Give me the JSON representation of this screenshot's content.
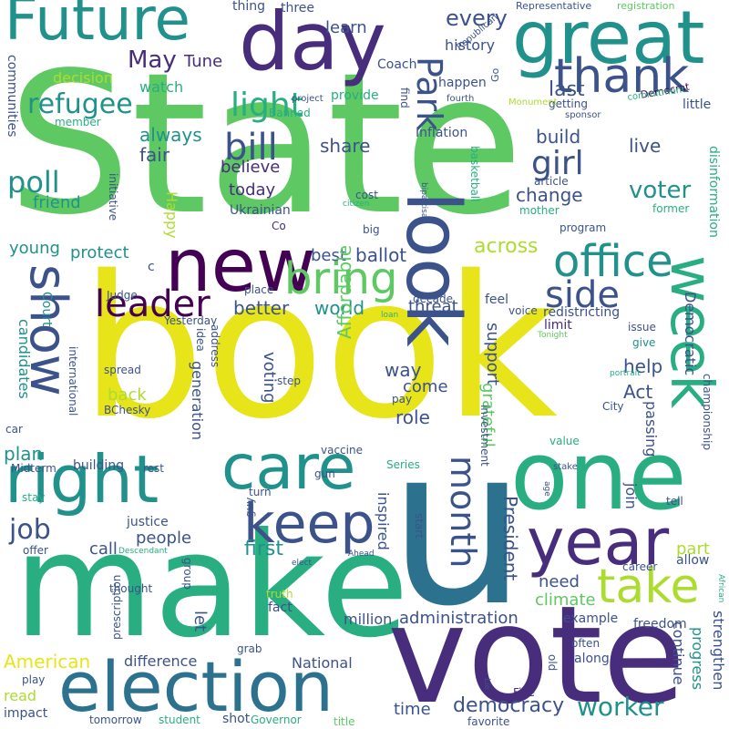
{
  "colors": {
    "background": "#ffffff",
    "dark_purple": "#440154",
    "purple": "#472d7b",
    "indigo": "#3b528b",
    "blue": "#2c728e",
    "teal": "#21918c",
    "turquoise": "#28ae80",
    "green": "#5ec962",
    "lime": "#addc30",
    "yellow": "#e7e419"
  },
  "words": [
    {
      "text": "State",
      "color": "#5ec962"
    },
    {
      "text": "book",
      "color": "#e7e419"
    },
    {
      "text": "u",
      "color": "#2c728e"
    },
    {
      "text": "make",
      "color": "#28ae80"
    },
    {
      "text": "vote",
      "color": "#472d7b"
    },
    {
      "text": "one",
      "color": "#28ae80"
    },
    {
      "text": "day",
      "color": "#472d7b"
    },
    {
      "text": "great",
      "color": "#21918c"
    },
    {
      "text": "Future",
      "color": "#21918c"
    },
    {
      "text": "new",
      "color": "#440154"
    },
    {
      "text": "look",
      "color": "#3b528b"
    },
    {
      "text": "election",
      "color": "#2c728e"
    },
    {
      "text": "year",
      "color": "#472d7b"
    },
    {
      "text": "right",
      "color": "#21918c"
    },
    {
      "text": "care",
      "color": "#21918c"
    },
    {
      "text": "show",
      "color": "#3b528b"
    },
    {
      "text": "week",
      "color": "#28ae80"
    },
    {
      "text": "thank",
      "color": "#3b528b"
    },
    {
      "text": "keep",
      "color": "#3b528b"
    },
    {
      "text": "take",
      "color": "#addc30"
    },
    {
      "text": "office",
      "color": "#21918c"
    },
    {
      "text": "bring",
      "color": "#5ec962"
    },
    {
      "text": "month",
      "color": "#3b528b"
    },
    {
      "text": "Park",
      "color": "#3b528b"
    },
    {
      "text": "leader",
      "color": "#440154"
    },
    {
      "text": "side",
      "color": "#3b528b"
    },
    {
      "text": "bill",
      "color": "#3b528b"
    },
    {
      "text": "light",
      "color": "#28ae80"
    },
    {
      "text": "poll",
      "color": "#21918c"
    },
    {
      "text": "refugee",
      "color": "#21918c"
    },
    {
      "text": "girl",
      "color": "#3b528b"
    },
    {
      "text": "job",
      "color": "#3b528b"
    },
    {
      "text": "worker",
      "color": "#21918c"
    },
    {
      "text": "democracy",
      "color": "#3b528b"
    },
    {
      "text": "voter",
      "color": "#21918c"
    },
    {
      "text": "May",
      "color": "#472d7b"
    },
    {
      "text": "Tune",
      "color": "#472d7b"
    },
    {
      "text": "every",
      "color": "#3b528b"
    },
    {
      "text": "learn",
      "color": "#3b528b"
    },
    {
      "text": "three",
      "color": "#3b528b"
    },
    {
      "text": "thing",
      "color": "#3b528b"
    },
    {
      "text": "Representative",
      "color": "#3b528b"
    },
    {
      "text": "registration",
      "color": "#5ec962"
    },
    {
      "text": "Republican",
      "color": "#3b528b"
    },
    {
      "text": "Democrat",
      "color": "#440154"
    },
    {
      "text": "history",
      "color": "#3b528b"
    },
    {
      "text": "Coach",
      "color": "#3b528b"
    },
    {
      "text": "decision",
      "color": "#addc30"
    },
    {
      "text": "watch",
      "color": "#28ae80"
    },
    {
      "text": "happen",
      "color": "#3b528b"
    },
    {
      "text": "last",
      "color": "#3b528b"
    },
    {
      "text": "getting",
      "color": "#3b528b"
    },
    {
      "text": "little",
      "color": "#3b528b"
    },
    {
      "text": "provide",
      "color": "#28ae80"
    },
    {
      "text": "project",
      "color": "#3b528b"
    },
    {
      "text": "fourth",
      "color": "#3b528b"
    },
    {
      "text": "Monument",
      "color": "#addc30"
    },
    {
      "text": "commitment",
      "color": "#28ae80"
    },
    {
      "text": "sponsor",
      "color": "#3b528b"
    },
    {
      "text": "member",
      "color": "#28ae80"
    },
    {
      "text": "Banned",
      "color": "#28ae80"
    },
    {
      "text": "always",
      "color": "#21918c"
    },
    {
      "text": "share",
      "color": "#3b528b"
    },
    {
      "text": "fair",
      "color": "#3b528b"
    },
    {
      "text": "Inflation",
      "color": "#3b528b"
    },
    {
      "text": "build",
      "color": "#3b528b"
    },
    {
      "text": "live",
      "color": "#3b528b"
    },
    {
      "text": "believe",
      "color": "#472d7b"
    },
    {
      "text": "today",
      "color": "#472d7b"
    },
    {
      "text": "change",
      "color": "#3b528b"
    },
    {
      "text": "article",
      "color": "#3b528b"
    },
    {
      "text": "mother",
      "color": "#28ae80"
    },
    {
      "text": "former",
      "color": "#28ae80"
    },
    {
      "text": "friend",
      "color": "#21918c"
    },
    {
      "text": "Ukrainian",
      "color": "#3b528b"
    },
    {
      "text": "cost",
      "color": "#3b528b"
    },
    {
      "text": "citizen",
      "color": "#28ae80"
    },
    {
      "text": "big",
      "color": "#3b528b"
    },
    {
      "text": "Co",
      "color": "#472d7b"
    },
    {
      "text": "program",
      "color": "#3b528b"
    },
    {
      "text": "young",
      "color": "#21918c"
    },
    {
      "text": "protect",
      "color": "#21918c"
    },
    {
      "text": "best",
      "color": "#3b528b"
    },
    {
      "text": "ballot",
      "color": "#3b528b"
    },
    {
      "text": "across",
      "color": "#addc30"
    },
    {
      "text": "world",
      "color": "#21918c"
    },
    {
      "text": "better",
      "color": "#3b528b"
    },
    {
      "text": "threat",
      "color": "#3b528b"
    },
    {
      "text": "Judge",
      "color": "#3b528b"
    },
    {
      "text": "address",
      "color": "#3b528b"
    },
    {
      "text": "place",
      "color": "#3b528b"
    },
    {
      "text": "decade",
      "color": "#3b528b"
    },
    {
      "text": "feel",
      "color": "#3b528b"
    },
    {
      "text": "voice",
      "color": "#3b528b"
    },
    {
      "text": "loan",
      "color": "#28ae80"
    },
    {
      "text": "redistricting",
      "color": "#3b528b"
    },
    {
      "text": "limit",
      "color": "#472d7b"
    },
    {
      "text": "issue",
      "color": "#3b528b"
    },
    {
      "text": "Tonight",
      "color": "#5ec962"
    },
    {
      "text": "give",
      "color": "#21918c"
    },
    {
      "text": "help",
      "color": "#3b528b"
    },
    {
      "text": "Yesterday",
      "color": "#3b528b"
    },
    {
      "text": "idea",
      "color": "#3b528b"
    },
    {
      "text": "way",
      "color": "#3b528b"
    },
    {
      "text": "come",
      "color": "#3b528b"
    },
    {
      "text": "role",
      "color": "#3b528b"
    },
    {
      "text": "back",
      "color": "#addc30"
    },
    {
      "text": "Act",
      "color": "#3b528b"
    },
    {
      "text": "spread",
      "color": "#3b528b"
    },
    {
      "text": "BChesky",
      "color": "#3b528b"
    },
    {
      "text": "step",
      "color": "#3b528b"
    },
    {
      "text": "pay",
      "color": "#3b528b"
    },
    {
      "text": "City",
      "color": "#3b528b"
    },
    {
      "text": "portrait",
      "color": "#28ae80"
    },
    {
      "text": "car",
      "color": "#3b528b"
    },
    {
      "text": "value",
      "color": "#28ae80"
    },
    {
      "text": "Midterm",
      "color": "#3b528b"
    },
    {
      "text": "building",
      "color": "#3b528b"
    },
    {
      "text": "rest",
      "color": "#3b528b"
    },
    {
      "text": "vaccine",
      "color": "#3b528b"
    },
    {
      "text": "Series",
      "color": "#28ae80"
    },
    {
      "text": "gun",
      "color": "#3b528b"
    },
    {
      "text": "stake",
      "color": "#3b528b"
    },
    {
      "text": "stay",
      "color": "#28ae80"
    },
    {
      "text": "turn",
      "color": "#3b528b"
    },
    {
      "text": "age",
      "color": "#3b528b"
    },
    {
      "text": "tell",
      "color": "#3b528b"
    },
    {
      "text": "justice",
      "color": "#3b528b"
    },
    {
      "text": "people",
      "color": "#3b528b"
    },
    {
      "text": "first",
      "color": "#21918c"
    },
    {
      "text": "guy",
      "color": "#3b528b"
    },
    {
      "text": "start",
      "color": "#3b528b"
    },
    {
      "text": "allow",
      "color": "#3b528b"
    },
    {
      "text": "offer",
      "color": "#3b528b"
    },
    {
      "text": "call",
      "color": "#3b528b"
    },
    {
      "text": "Descendant",
      "color": "#28ae80"
    },
    {
      "text": "elect",
      "color": "#3b528b"
    },
    {
      "text": "Ahead",
      "color": "#3b528b"
    },
    {
      "text": "group",
      "color": "#3b528b"
    },
    {
      "text": "career",
      "color": "#3b528b"
    },
    {
      "text": "African",
      "color": "#28ae80"
    },
    {
      "text": "part",
      "color": "#addc30"
    },
    {
      "text": "need",
      "color": "#3b528b"
    },
    {
      "text": "climate",
      "color": "#5ec962"
    },
    {
      "text": "thought",
      "color": "#3b528b"
    },
    {
      "text": "truth",
      "color": "#addc30"
    },
    {
      "text": "fact",
      "color": "#3b528b"
    },
    {
      "text": "million",
      "color": "#3b528b"
    },
    {
      "text": "administration",
      "color": "#3b528b"
    },
    {
      "text": "example",
      "color": "#3b528b"
    },
    {
      "text": "freedom",
      "color": "#3b528b"
    },
    {
      "text": "often",
      "color": "#3b528b"
    },
    {
      "text": "along",
      "color": "#3b528b"
    },
    {
      "text": "let",
      "color": "#3b528b"
    },
    {
      "text": "plan",
      "color": "#21918c"
    },
    {
      "text": "American",
      "color": "#e7e419"
    },
    {
      "text": "difference",
      "color": "#3b528b"
    },
    {
      "text": "National",
      "color": "#3b528b"
    },
    {
      "text": "grab",
      "color": "#3b528b"
    },
    {
      "text": "prescription",
      "color": "#3b528b"
    },
    {
      "text": "play",
      "color": "#3b528b"
    },
    {
      "text": "read",
      "color": "#addc30"
    },
    {
      "text": "impact",
      "color": "#3b528b"
    },
    {
      "text": "tomorrow",
      "color": "#3b528b"
    },
    {
      "text": "student",
      "color": "#28ae80"
    },
    {
      "text": "shot",
      "color": "#3b528b"
    },
    {
      "text": "Governor",
      "color": "#28ae80"
    },
    {
      "text": "title",
      "color": "#5ec962"
    },
    {
      "text": "favorite",
      "color": "#3b528b"
    },
    {
      "text": "time",
      "color": "#3b528b"
    },
    {
      "text": "Five",
      "color": "#472d7b"
    },
    {
      "text": "old",
      "color": "#3b528b"
    },
    {
      "text": "Lie",
      "color": "#3b528b"
    },
    {
      "text": "Happy",
      "color": "#addc30"
    },
    {
      "text": "voting",
      "color": "#3b528b"
    },
    {
      "text": "generation",
      "color": "#3b528b"
    },
    {
      "text": "Affordable",
      "color": "#5ec962"
    },
    {
      "text": "support",
      "color": "#3b528b"
    },
    {
      "text": "grateful",
      "color": "#5ec962"
    },
    {
      "text": "inspired",
      "color": "#3b528b"
    },
    {
      "text": "President",
      "color": "#3b528b"
    },
    {
      "text": "Democratic",
      "color": "#3b528b"
    },
    {
      "text": "disinformation",
      "color": "#28ae80"
    },
    {
      "text": "initiative",
      "color": "#3b528b"
    },
    {
      "text": "bipartisan",
      "color": "#3b528b"
    },
    {
      "text": "basketball",
      "color": "#28ae80"
    },
    {
      "text": "international",
      "color": "#3b528b"
    },
    {
      "text": "investment",
      "color": "#3b528b"
    },
    {
      "text": "championship",
      "color": "#3b528b"
    },
    {
      "text": "passing",
      "color": "#3b528b"
    },
    {
      "text": "continue",
      "color": "#3b528b"
    },
    {
      "text": "progress",
      "color": "#21918c"
    },
    {
      "text": "strengthen",
      "color": "#3b528b"
    },
    {
      "text": "join",
      "color": "#3b528b"
    },
    {
      "text": "candidates",
      "color": "#21918c"
    },
    {
      "text": "Court",
      "color": "#21918c"
    },
    {
      "text": "communities",
      "color": "#3b528b"
    },
    {
      "text": "find",
      "color": "#3b528b"
    },
    {
      "text": "Go",
      "color": "#3b528b"
    },
    {
      "text": "c",
      "color": "#3b528b"
    }
  ]
}
